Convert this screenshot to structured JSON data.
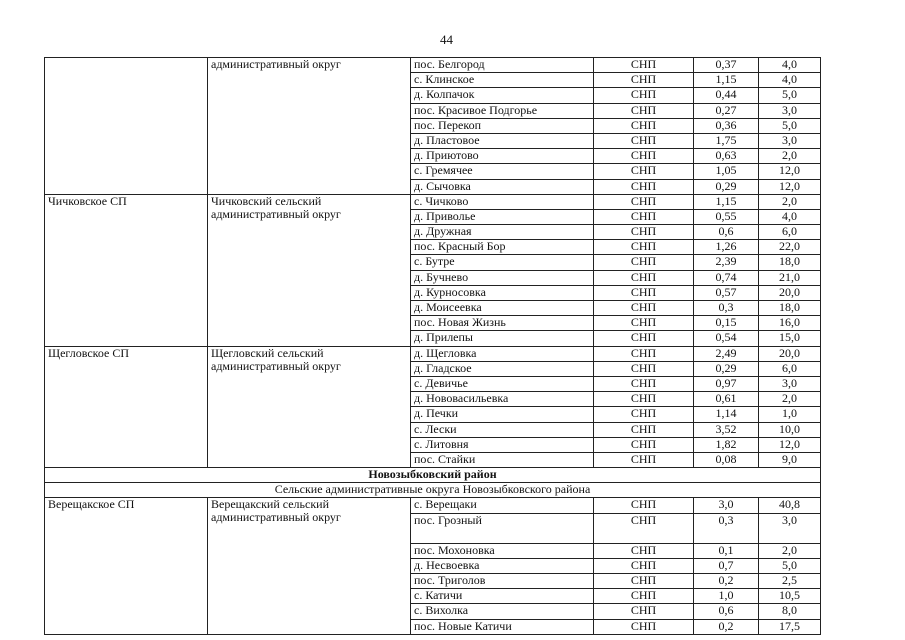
{
  "page_number": "44",
  "groups": [
    {
      "sp": "",
      "okrug": "административный округ",
      "rows": [
        [
          "пос. Белгород",
          "СНП",
          "0,37",
          "4,0"
        ],
        [
          "с. Клинское",
          "СНП",
          "1,15",
          "4,0"
        ],
        [
          "д. Колпачок",
          "СНП",
          "0,44",
          "5,0"
        ],
        [
          "пос. Красивое Подгорье",
          "СНП",
          "0,27",
          "3,0"
        ],
        [
          "пос. Перекоп",
          "СНП",
          "0,36",
          "5,0"
        ],
        [
          "д. Пластовое",
          "СНП",
          "1,75",
          "3,0"
        ],
        [
          "д. Приютово",
          "СНП",
          "0,63",
          "2,0"
        ],
        [
          "с. Гремячее",
          "СНП",
          "1,05",
          "12,0"
        ],
        [
          "д. Сычовка",
          "СНП",
          "0,29",
          "12,0"
        ]
      ]
    },
    {
      "sp": "Чичковское СП",
      "okrug": "Чичковский сельский административный округ",
      "rows": [
        [
          "с. Чичково",
          "СНП",
          "1,15",
          "2,0"
        ],
        [
          "д. Приволье",
          "СНП",
          "0,55",
          "4,0"
        ],
        [
          "д. Дружная",
          "СНП",
          "0,6",
          "6,0"
        ],
        [
          "пос. Красный Бор",
          "СНП",
          "1,26",
          "22,0"
        ],
        [
          "с. Бутре",
          "СНП",
          "2,39",
          "18,0"
        ],
        [
          "д. Бучнево",
          "СНП",
          "0,74",
          "21,0"
        ],
        [
          "д. Курносовка",
          "СНП",
          "0,57",
          "20,0"
        ],
        [
          "д. Моисеевка",
          "СНП",
          "0,3",
          "18,0"
        ],
        [
          "пос. Новая Жизнь",
          "СНП",
          "0,15",
          "16,0"
        ],
        [
          "д. Прилепы",
          "СНП",
          "0,54",
          "15,0"
        ]
      ]
    },
    {
      "sp": "Щегловское СП",
      "okrug": "Щегловский сельский административный округ",
      "rows": [
        [
          "д. Щегловка",
          "СНП",
          "2,49",
          "20,0"
        ],
        [
          "д. Гладское",
          "СНП",
          "0,29",
          "6,0"
        ],
        [
          "с. Девичье",
          "СНП",
          "0,97",
          "3,0"
        ],
        [
          "д. Нововасильевка",
          "СНП",
          "0,61",
          "2,0"
        ],
        [
          "д. Печки",
          "СНП",
          "1,14",
          "1,0"
        ],
        [
          "с. Лески",
          "СНП",
          "3,52",
          "10,0"
        ],
        [
          "с. Литовня",
          "СНП",
          "1,82",
          "12,0"
        ],
        [
          "пос. Стайки",
          "СНП",
          "0,08",
          "9,0"
        ]
      ]
    }
  ],
  "district_title": "Новозыбковский район",
  "district_subtitle": "Сельские административные округа Новозыбковского района",
  "group4": {
    "sp": "Верещакское СП",
    "okrug": "Верещакский сельский административный округ",
    "rows": [
      [
        "с. Верещаки",
        "СНП",
        "3,0",
        "40,8"
      ],
      [
        "пос. Грозный",
        "СНП",
        "0,3",
        "3,0"
      ],
      [
        "пос. Мохоновка",
        "СНП",
        "0,1",
        "2,0"
      ],
      [
        "д. Несвоевка",
        "СНП",
        "0,7",
        "5,0"
      ],
      [
        "пос. Триголов",
        "СНП",
        "0,2",
        "2,5"
      ],
      [
        "с. Катичи",
        "СНП",
        "1,0",
        "10,5"
      ],
      [
        "с. Вихолка",
        "СНП",
        "0,6",
        "8,0"
      ],
      [
        "пос. Новые Катичи",
        "СНП",
        "0,2",
        "17,5"
      ]
    ]
  }
}
